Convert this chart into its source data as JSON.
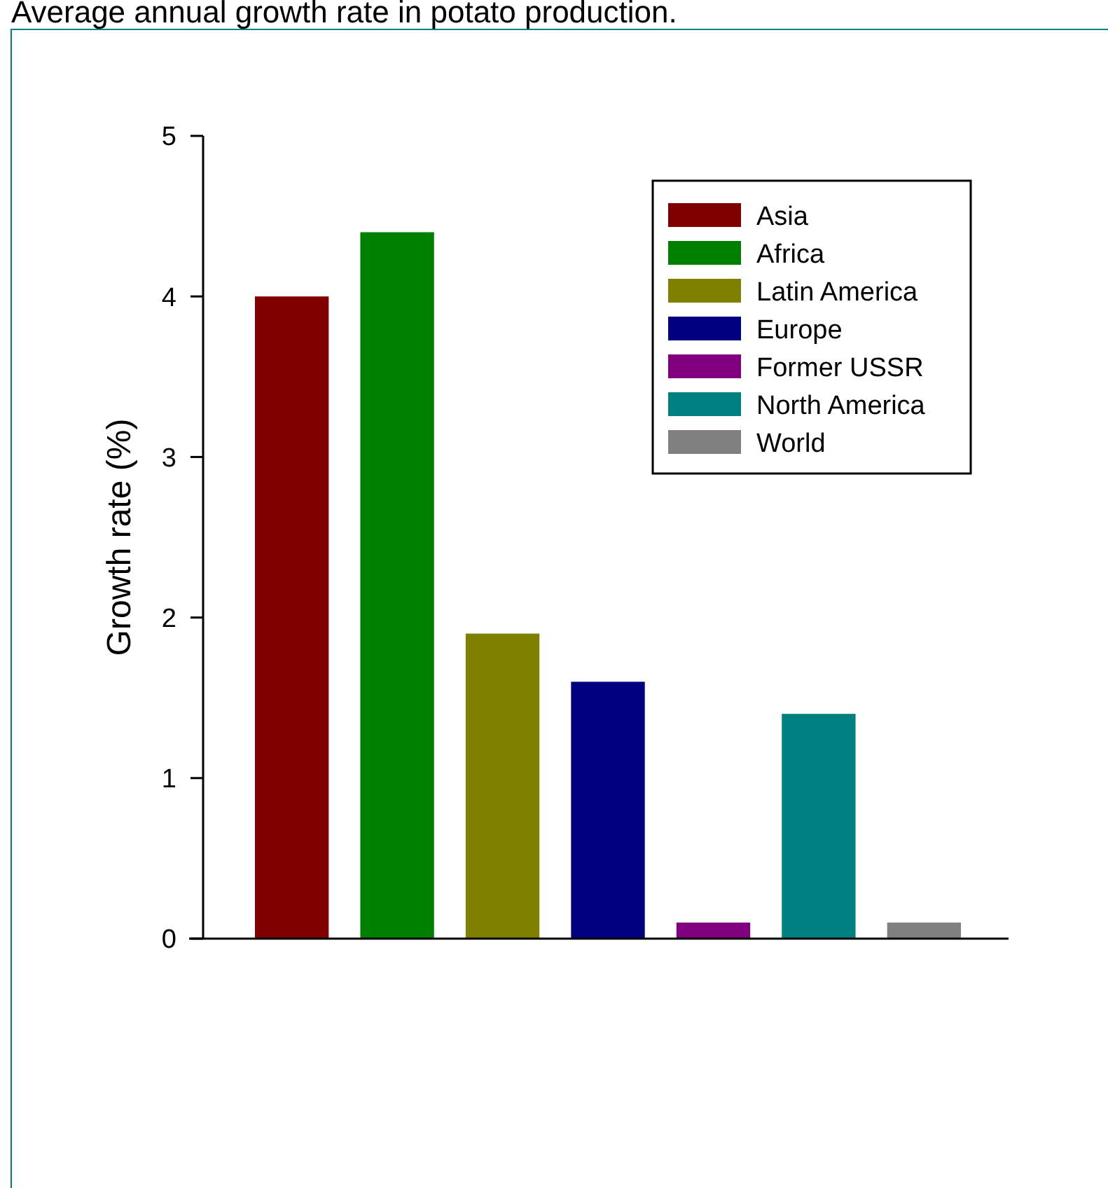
{
  "chart_data": {
    "type": "bar",
    "title": "Average annual growth rate in potato production.",
    "ylabel": "Growth rate (%)",
    "categories": [
      null,
      null,
      null,
      null,
      null,
      null,
      null
    ],
    "series": [
      {
        "name": "Asia",
        "color": "#800000",
        "values": [
          4.0,
          null,
          null,
          null,
          null,
          null,
          null
        ]
      },
      {
        "name": "Africa",
        "color": "#008000",
        "values": [
          null,
          4.4,
          null,
          null,
          null,
          null,
          null
        ]
      },
      {
        "name": "Latin America",
        "color": "#808000",
        "values": [
          null,
          null,
          1.9,
          null,
          null,
          null,
          null
        ]
      },
      {
        "name": "Europe",
        "color": "#000080",
        "values": [
          null,
          null,
          null,
          1.6,
          null,
          null,
          null
        ]
      },
      {
        "name": "Former USSR",
        "color": "#800080",
        "values": [
          null,
          null,
          null,
          null,
          0.1,
          null,
          null
        ]
      },
      {
        "name": "North America",
        "color": "#008080",
        "values": [
          null,
          null,
          null,
          null,
          null,
          1.4,
          null
        ]
      },
      {
        "name": "World",
        "color": "#808080",
        "values": [
          null,
          null,
          null,
          null,
          null,
          null,
          0.1
        ]
      }
    ],
    "ylim": [
      0,
      5
    ],
    "yticks": [
      0,
      1,
      2,
      3,
      4,
      5
    ],
    "grid": false,
    "legend": "top right"
  }
}
